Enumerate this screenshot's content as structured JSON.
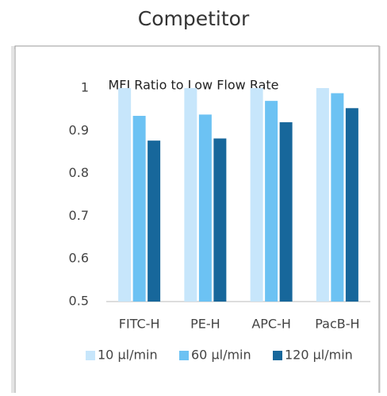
{
  "heading": "Competitor",
  "chart_data": {
    "type": "bar",
    "title": "MFI Ratio to Low Flow Rate",
    "categories": [
      "FITC-H",
      "PE-H",
      "APC-H",
      "PacB-H"
    ],
    "series": [
      {
        "name": "10 µl/min",
        "color": "#c7e6fb",
        "values": [
          1,
          1,
          1,
          1
        ]
      },
      {
        "name": "60 µl/min",
        "color": "#6cc2f3",
        "values": [
          0.935,
          0.938,
          0.97,
          0.988
        ]
      },
      {
        "name": "120 µl/min",
        "color": "#17679b",
        "values": [
          0.877,
          0.882,
          0.92,
          0.953
        ]
      }
    ],
    "ylim": [
      0.5,
      1
    ],
    "yticks": [
      0.5,
      0.6,
      0.7,
      0.8,
      0.9,
      1
    ],
    "grid": false,
    "legend": "bottom"
  }
}
